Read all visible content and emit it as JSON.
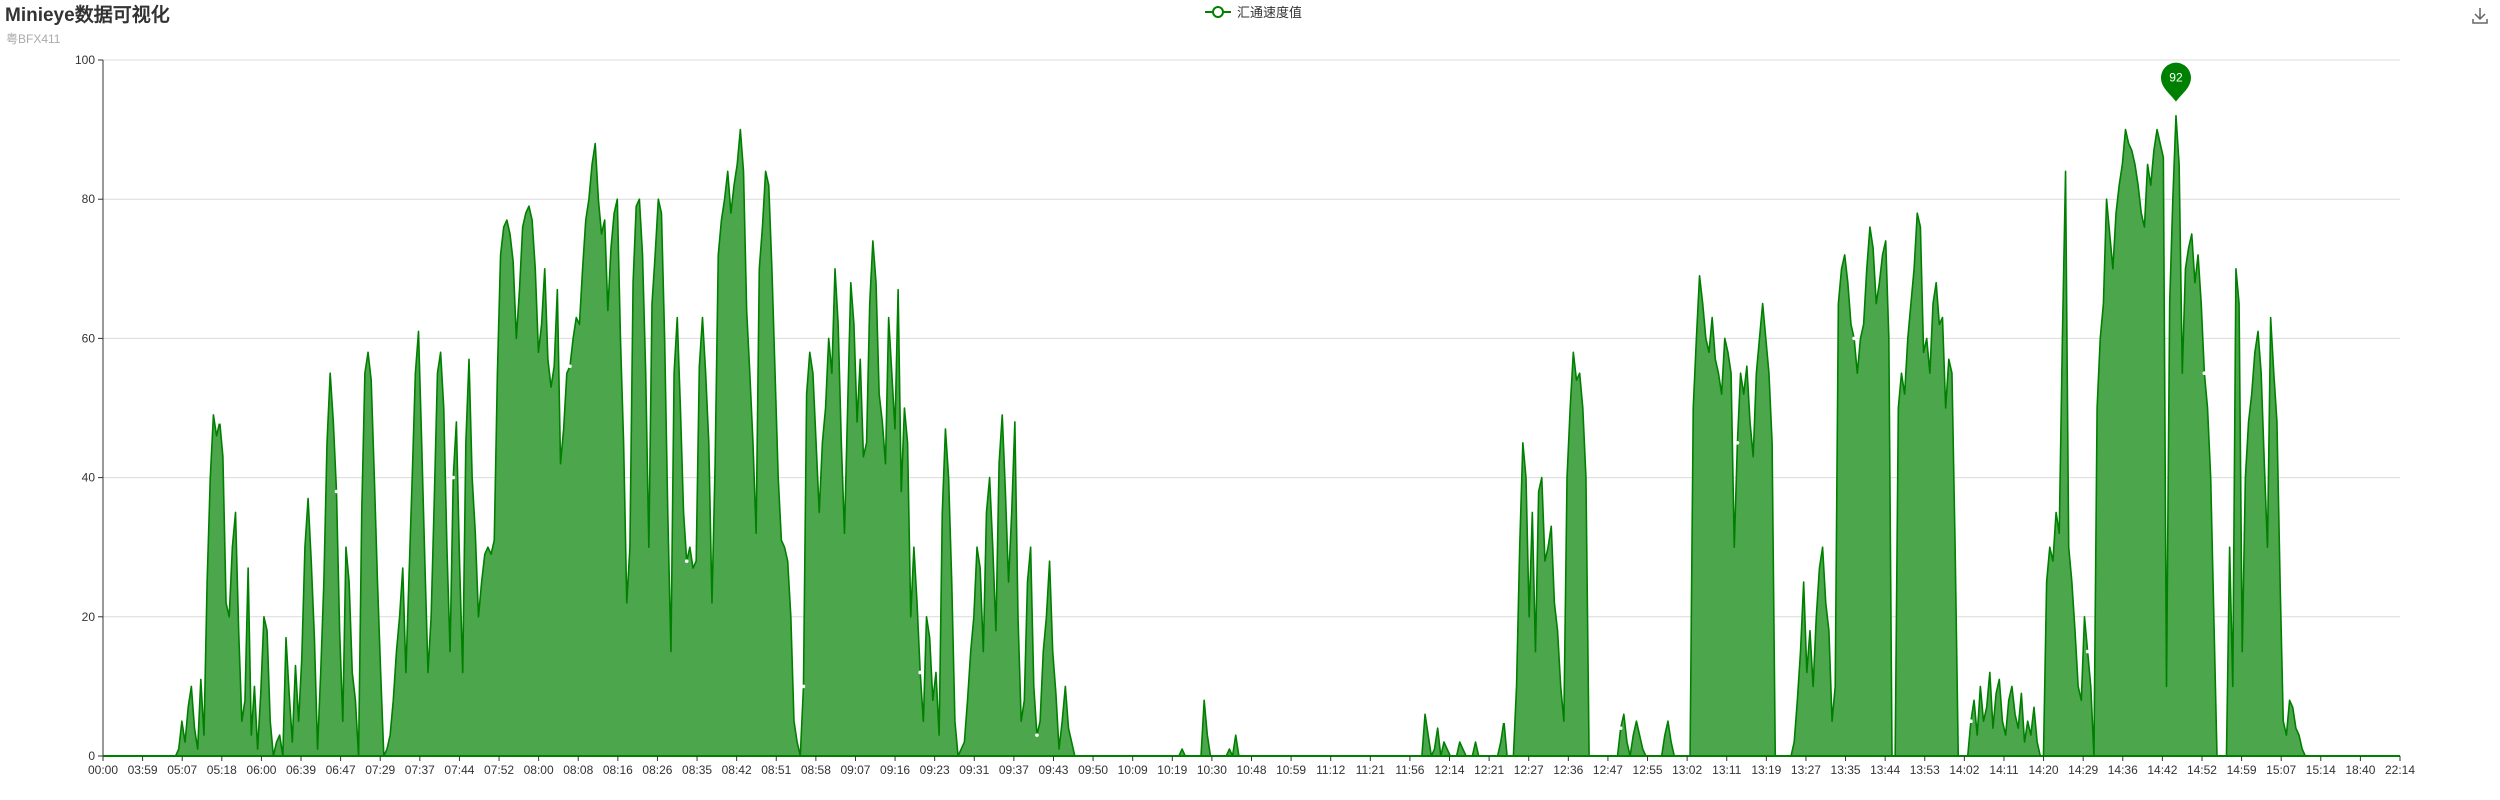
{
  "header": {
    "title": "Minieye数据可视化",
    "subtitle": "粤BFX411"
  },
  "legend": {
    "label": "汇通速度值",
    "icon": "line-circle-icon"
  },
  "toolbox": {
    "icon": "download-icon"
  },
  "colors": {
    "series": "#008000",
    "area": "#4ca64c",
    "grid": "#dcdcdc",
    "axis": "#333333"
  },
  "chart_data": {
    "type": "area",
    "title": "Minieye数据可视化",
    "subtitle": "粤BFX411",
    "xlabel": "",
    "ylabel": "",
    "ylim": [
      0,
      100
    ],
    "yticks": [
      0,
      20,
      40,
      60,
      80,
      100
    ],
    "grid": true,
    "legend_position": "top-center",
    "x_ticks": [
      "00:00",
      "03:59",
      "05:07",
      "05:18",
      "06:00",
      "06:39",
      "06:47",
      "07:29",
      "07:37",
      "07:44",
      "07:52",
      "08:00",
      "08:08",
      "08:16",
      "08:26",
      "08:35",
      "08:42",
      "08:51",
      "08:58",
      "09:07",
      "09:16",
      "09:23",
      "09:31",
      "09:37",
      "09:43",
      "09:50",
      "10:09",
      "10:19",
      "10:30",
      "10:48",
      "10:59",
      "11:12",
      "11:21",
      "11:56",
      "12:14",
      "12:21",
      "12:27",
      "12:36",
      "12:47",
      "12:55",
      "13:02",
      "13:11",
      "13:19",
      "13:27",
      "13:35",
      "13:44",
      "13:53",
      "14:02",
      "14:11",
      "14:20",
      "14:29",
      "14:36",
      "14:42",
      "14:52",
      "14:59",
      "15:07",
      "15:14",
      "18:40",
      "22:14"
    ],
    "series": [
      {
        "name": "汇通速度值",
        "values": [
          0,
          0,
          0,
          0,
          0,
          0,
          0,
          0,
          0,
          0,
          0,
          0,
          0,
          0,
          0,
          0,
          0,
          0,
          0,
          0,
          0,
          0,
          0,
          0,
          1,
          5,
          2,
          7,
          10,
          4,
          1,
          11,
          3,
          25,
          40,
          49,
          46,
          48,
          43,
          22,
          20,
          30,
          35,
          18,
          5,
          8,
          27,
          3,
          10,
          1,
          9,
          20,
          18,
          5,
          0,
          2,
          3,
          0,
          17,
          9,
          2,
          13,
          5,
          14,
          30,
          37,
          28,
          17,
          1,
          12,
          25,
          45,
          55,
          48,
          38,
          18,
          5,
          30,
          25,
          12,
          8,
          0,
          35,
          55,
          58,
          54,
          40,
          25,
          12,
          0,
          1,
          3,
          8,
          15,
          20,
          27,
          12,
          26,
          40,
          55,
          61,
          45,
          28,
          12,
          20,
          37,
          55,
          58,
          50,
          30,
          15,
          40,
          48,
          28,
          12,
          45,
          57,
          40,
          32,
          20,
          25,
          29,
          30,
          29,
          31,
          55,
          72,
          76,
          77,
          75,
          71,
          60,
          67,
          76,
          78,
          79,
          77,
          70,
          58,
          62,
          70,
          57,
          53,
          56,
          67,
          42,
          47,
          55,
          56,
          60,
          63,
          62,
          70,
          77,
          80,
          85,
          88,
          80,
          75,
          77,
          64,
          73,
          78,
          80,
          60,
          45,
          22,
          30,
          68,
          79,
          80,
          72,
          55,
          30,
          65,
          72,
          80,
          78,
          60,
          35,
          15,
          55,
          63,
          50,
          35,
          28,
          30,
          27,
          28,
          56,
          63,
          55,
          45,
          22,
          42,
          72,
          77,
          80,
          84,
          78,
          82,
          85,
          90,
          84,
          64,
          55,
          45,
          32,
          70,
          76,
          84,
          82,
          70,
          55,
          40,
          31,
          30,
          28,
          20,
          5,
          2,
          0,
          10,
          52,
          58,
          55,
          45,
          35,
          45,
          50,
          60,
          55,
          70,
          62,
          45,
          32,
          50,
          68,
          62,
          48,
          57,
          43,
          45,
          65,
          74,
          68,
          52,
          48,
          42,
          63,
          55,
          47,
          67,
          38,
          50,
          45,
          20,
          30,
          22,
          12,
          5,
          20,
          17,
          8,
          12,
          3,
          35,
          47,
          40,
          25,
          5,
          0,
          1,
          2,
          8,
          15,
          20,
          30,
          27,
          15,
          35,
          40,
          30,
          18,
          42,
          49,
          38,
          25,
          35,
          48,
          20,
          5,
          8,
          25,
          30,
          10,
          3,
          5,
          15,
          20,
          28,
          15,
          9,
          1,
          5,
          10,
          4,
          2,
          0,
          0,
          0,
          0,
          0,
          0,
          0,
          0,
          0,
          0,
          0,
          0,
          0,
          0,
          0,
          0,
          0,
          0,
          0,
          0,
          0,
          0,
          0,
          0,
          0,
          0,
          0,
          0,
          0,
          0,
          0,
          0,
          0,
          0,
          1,
          0,
          0,
          0,
          0,
          0,
          0,
          8,
          3,
          0,
          0,
          0,
          0,
          0,
          0,
          1,
          0,
          3,
          0,
          0,
          0,
          0,
          0,
          0,
          0,
          0,
          0,
          0,
          0,
          0,
          0,
          0,
          0,
          0,
          0,
          0,
          0,
          0,
          0,
          0,
          0,
          0,
          0,
          0,
          0,
          0,
          0,
          0,
          0,
          0,
          0,
          0,
          0,
          0,
          0,
          0,
          0,
          0,
          0,
          0,
          0,
          0,
          0,
          0,
          0,
          0,
          0,
          0,
          0,
          0,
          0,
          0,
          0,
          0,
          0,
          0,
          0,
          6,
          3,
          0,
          1,
          4,
          0,
          2,
          1,
          0,
          0,
          0,
          2,
          1,
          0,
          0,
          0,
          2,
          0,
          0,
          0,
          0,
          0,
          0,
          0,
          2,
          5,
          0,
          0,
          0,
          10,
          30,
          45,
          40,
          20,
          35,
          15,
          38,
          40,
          28,
          30,
          33,
          22,
          18,
          10,
          5,
          40,
          50,
          58,
          54,
          55,
          50,
          40,
          0,
          0,
          0,
          0,
          0,
          0,
          0,
          0,
          0,
          0,
          4,
          6,
          2,
          0,
          3,
          5,
          3,
          1,
          0,
          0,
          0,
          0,
          0,
          0,
          3,
          5,
          2,
          0,
          0,
          0,
          0,
          0,
          0,
          50,
          60,
          69,
          65,
          60,
          58,
          63,
          57,
          55,
          52,
          60,
          58,
          55,
          30,
          45,
          55,
          52,
          56,
          48,
          43,
          55,
          60,
          65,
          60,
          55,
          45,
          0,
          0,
          0,
          0,
          0,
          0,
          2,
          8,
          15,
          25,
          12,
          18,
          10,
          20,
          27,
          30,
          22,
          18,
          5,
          10,
          65,
          70,
          72,
          68,
          62,
          60,
          55,
          60,
          62,
          70,
          76,
          73,
          65,
          68,
          72,
          74,
          60,
          0,
          0,
          50,
          55,
          52,
          60,
          65,
          70,
          78,
          76,
          58,
          60,
          55,
          65,
          68,
          62,
          63,
          50,
          57,
          55,
          30,
          0,
          0,
          0,
          0,
          5,
          8,
          3,
          10,
          5,
          7,
          12,
          4,
          9,
          11,
          5,
          3,
          8,
          10,
          6,
          4,
          9,
          2,
          5,
          3,
          7,
          2,
          0,
          0,
          25,
          30,
          28,
          35,
          32,
          60,
          84,
          30,
          25,
          18,
          10,
          8,
          20,
          15,
          10,
          0,
          50,
          60,
          65,
          80,
          75,
          70,
          78,
          82,
          85,
          90,
          88,
          87,
          85,
          82,
          78,
          76,
          85,
          82,
          87,
          90,
          88,
          86,
          10,
          65,
          80,
          92,
          85,
          55,
          70,
          73,
          75,
          68,
          72,
          65,
          55,
          50,
          40,
          20,
          0,
          0,
          0,
          0,
          30,
          10,
          70,
          65,
          15,
          40,
          48,
          52,
          58,
          61,
          55,
          42,
          30,
          63,
          55,
          48,
          25,
          5,
          3,
          8,
          7,
          4,
          3,
          1,
          0,
          0,
          0,
          0,
          0,
          0,
          0,
          0,
          0,
          0,
          0,
          0,
          0,
          0,
          0,
          0,
          0,
          0,
          0,
          0,
          0,
          0,
          0,
          0,
          0,
          0,
          0,
          0,
          0,
          0,
          0
        ]
      }
    ],
    "markpoint": {
      "label": "92",
      "value": 92
    }
  }
}
